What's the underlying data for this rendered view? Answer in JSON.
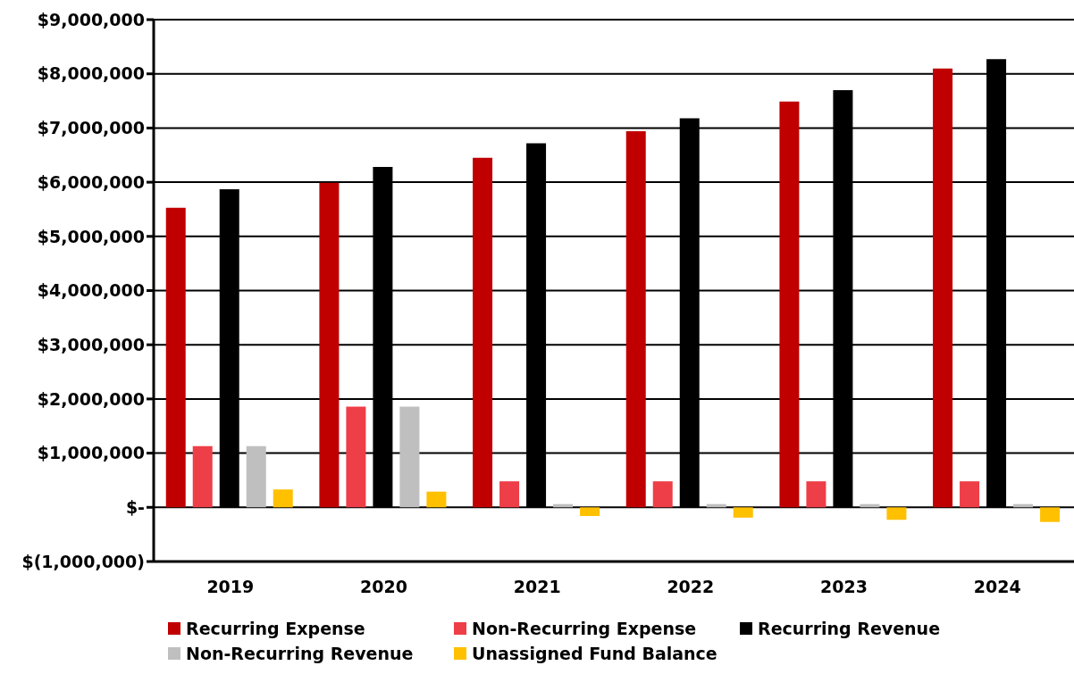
{
  "chart_data": {
    "type": "bar",
    "categories": [
      "2019",
      "2020",
      "2021",
      "2022",
      "2023",
      "2024"
    ],
    "series": [
      {
        "name": "Recurring Expense",
        "color": "#c00000",
        "values": [
          5530000,
          5990000,
          6450000,
          6940000,
          7490000,
          8100000
        ]
      },
      {
        "name": "Non-Recurring Expense",
        "color": "#ee3e47",
        "values": [
          1130000,
          1860000,
          480000,
          480000,
          480000,
          480000
        ]
      },
      {
        "name": "Recurring Revenue",
        "color": "#000000",
        "values": [
          5870000,
          6280000,
          6720000,
          7180000,
          7700000,
          8270000
        ]
      },
      {
        "name": "Non-Recurring Revenue",
        "color": "#bfbfbf",
        "values": [
          1130000,
          1860000,
          60000,
          60000,
          60000,
          60000
        ]
      },
      {
        "name": "Unassigned Fund Balance",
        "color": "#ffc000",
        "values": [
          330000,
          290000,
          -160000,
          -190000,
          -230000,
          -270000
        ]
      }
    ],
    "ylim": [
      -1000000,
      9000000
    ],
    "yticks": [
      {
        "value": -1000000,
        "label": "$(1,000,000)"
      },
      {
        "value": 0,
        "label": "$-"
      },
      {
        "value": 1000000,
        "label": "$1,000,000"
      },
      {
        "value": 2000000,
        "label": "$2,000,000"
      },
      {
        "value": 3000000,
        "label": "$3,000,000"
      },
      {
        "value": 4000000,
        "label": "$4,000,000"
      },
      {
        "value": 5000000,
        "label": "$5,000,000"
      },
      {
        "value": 6000000,
        "label": "$6,000,000"
      },
      {
        "value": 7000000,
        "label": "$7,000,000"
      },
      {
        "value": 8000000,
        "label": "$8,000,000"
      },
      {
        "value": 9000000,
        "label": "$9,000,000"
      }
    ],
    "grid": "y",
    "legend": "bottom"
  }
}
